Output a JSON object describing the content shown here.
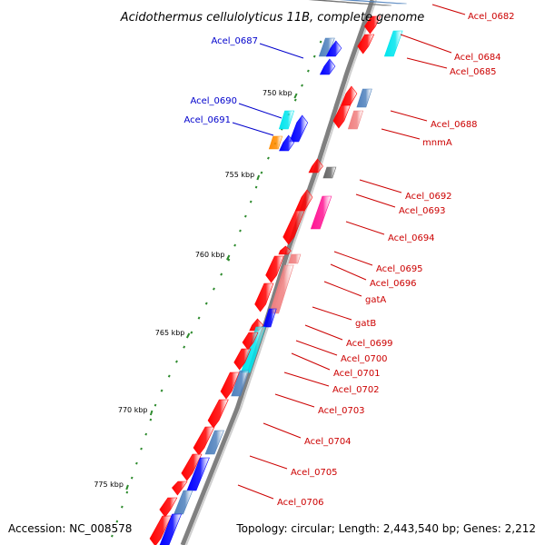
{
  "title": "Acidothermus cellulolyticus 11B, complete genome",
  "footer": {
    "accession": "Accession: NC_008578",
    "summary": "Topology: circular; Length: 2,443,540 bp; Genes: 2,212"
  },
  "colors": {
    "backbone": "#888888",
    "tick": "#2e8b2e",
    "label_right": "#cc0000",
    "label_left": "#0000cc",
    "red": "#ff0000",
    "blue": "#0000ff",
    "cyan": "#00e5ee",
    "steelblue": "#4f81bd",
    "pink": "#f08080",
    "magenta": "#ff1493",
    "gray": "#666666",
    "orange": "#ff8c00"
  },
  "scale_ticks": [
    "750 kbp",
    "755 kbp",
    "760 kbp",
    "765 kbp",
    "770 kbp",
    "775 kbp"
  ],
  "gene_labels_left": [
    "Acel_0687",
    "Acel_0690",
    "Acel_0691"
  ],
  "gene_labels_right": [
    "Acel_0682",
    "Acel_0684",
    "Acel_0685",
    "Acel_0688",
    "mnmA",
    "Acel_0692",
    "Acel_0693",
    "Acel_0694",
    "Acel_0695",
    "Acel_0696",
    "gatA",
    "gatB",
    "Acel_0699",
    "Acel_0700",
    "Acel_0701",
    "Acel_0702",
    "Acel_0703",
    "Acel_0704",
    "Acel_0705",
    "Acel_0706"
  ]
}
